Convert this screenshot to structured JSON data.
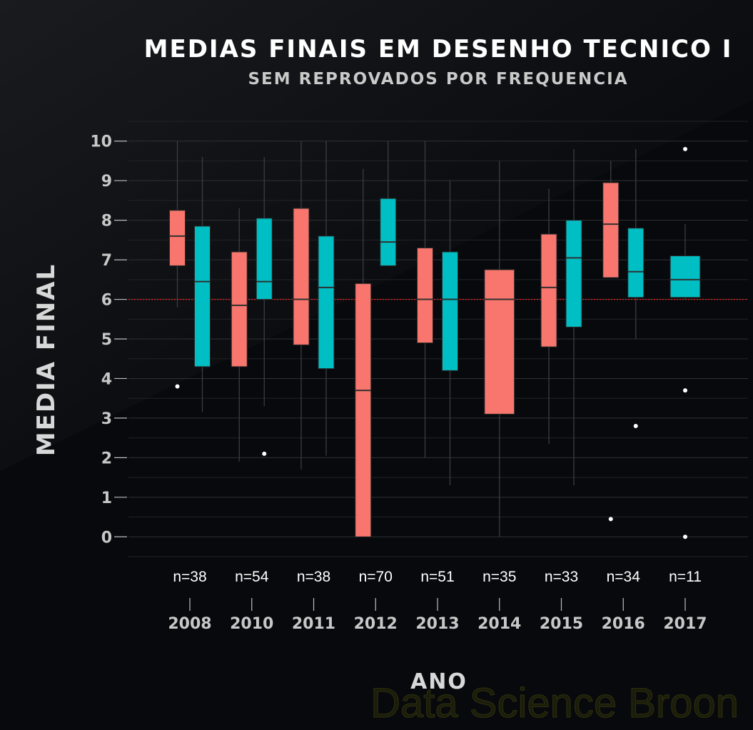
{
  "chart_data": {
    "type": "boxplot",
    "title": "MEDIAS FINAIS EM DESENHO TECNICO I",
    "subtitle": "SEM REPROVADOS POR FREQUENCIA",
    "xlabel": "ANO",
    "ylabel": "MEDIA FINAL",
    "ylim": [
      -0.5,
      10.5
    ],
    "yticks": [
      0,
      1,
      2,
      3,
      4,
      5,
      6,
      7,
      8,
      9,
      10
    ],
    "reference_line": 6,
    "grid": true,
    "colors": {
      "group_a": "#f8766d",
      "group_b": "#00bfc4",
      "reference": "#e5201e",
      "outlier": "#ffffff"
    },
    "categories": [
      "2008",
      "2010",
      "2011",
      "2012",
      "2013",
      "2014",
      "2015",
      "2016",
      "2017"
    ],
    "counts": [
      "n=38",
      "n=54",
      "n=38",
      "n=70",
      "n=51",
      "n=35",
      "n=33",
      "n=34",
      "n=11"
    ],
    "boxes": [
      {
        "category": "2008",
        "group": "a",
        "min": 5.8,
        "q1": 6.85,
        "median": 7.6,
        "q3": 8.25,
        "max": 10.0,
        "outliers": [
          3.8
        ]
      },
      {
        "category": "2008",
        "group": "b",
        "min": 3.15,
        "q1": 4.3,
        "median": 6.45,
        "q3": 7.85,
        "max": 9.6,
        "outliers": []
      },
      {
        "category": "2010",
        "group": "a",
        "min": 1.9,
        "q1": 4.3,
        "median": 5.85,
        "q3": 7.2,
        "max": 8.3,
        "outliers": []
      },
      {
        "category": "2010",
        "group": "b",
        "min": 3.3,
        "q1": 6.0,
        "median": 6.45,
        "q3": 8.05,
        "max": 9.6,
        "outliers": [
          2.1
        ]
      },
      {
        "category": "2011",
        "group": "a",
        "min": 1.7,
        "q1": 4.85,
        "median": 6.0,
        "q3": 8.3,
        "max": 10.0,
        "outliers": []
      },
      {
        "category": "2011",
        "group": "b",
        "min": 2.05,
        "q1": 4.25,
        "median": 6.3,
        "q3": 7.6,
        "max": 10.0,
        "outliers": []
      },
      {
        "category": "2012",
        "group": "a",
        "min": 0.0,
        "q1": 0.0,
        "median": 3.7,
        "q3": 6.4,
        "max": 9.3,
        "outliers": []
      },
      {
        "category": "2012",
        "group": "b",
        "min": 6.85,
        "q1": 6.85,
        "median": 7.45,
        "q3": 8.55,
        "max": 10.0,
        "outliers": []
      },
      {
        "category": "2013",
        "group": "a",
        "min": 2.0,
        "q1": 4.9,
        "median": 6.0,
        "q3": 7.3,
        "max": 10.0,
        "outliers": []
      },
      {
        "category": "2013",
        "group": "b",
        "min": 1.3,
        "q1": 4.2,
        "median": 6.0,
        "q3": 7.2,
        "max": 9.0,
        "outliers": []
      },
      {
        "category": "2014",
        "group": "a",
        "min": 0.0,
        "q1": 3.1,
        "median": 6.0,
        "q3": 6.75,
        "max": 9.5,
        "outliers": []
      },
      {
        "category": "2015",
        "group": "a",
        "min": 2.35,
        "q1": 4.8,
        "median": 6.3,
        "q3": 7.65,
        "max": 8.8,
        "outliers": []
      },
      {
        "category": "2015",
        "group": "b",
        "min": 1.3,
        "q1": 5.3,
        "median": 7.05,
        "q3": 8.0,
        "max": 9.8,
        "outliers": []
      },
      {
        "category": "2016",
        "group": "a",
        "min": 6.55,
        "q1": 6.55,
        "median": 7.9,
        "q3": 8.95,
        "max": 9.5,
        "outliers": [
          0.45
        ]
      },
      {
        "category": "2016",
        "group": "b",
        "min": 5.0,
        "q1": 6.05,
        "median": 6.7,
        "q3": 7.8,
        "max": 9.8,
        "outliers": [
          2.8
        ]
      },
      {
        "category": "2017",
        "group": "b",
        "min": 6.0,
        "q1": 6.05,
        "median": 6.5,
        "q3": 7.1,
        "max": 7.9,
        "outliers": [
          9.8,
          3.7,
          0.0
        ]
      }
    ]
  },
  "watermark": "Data Science Broon"
}
